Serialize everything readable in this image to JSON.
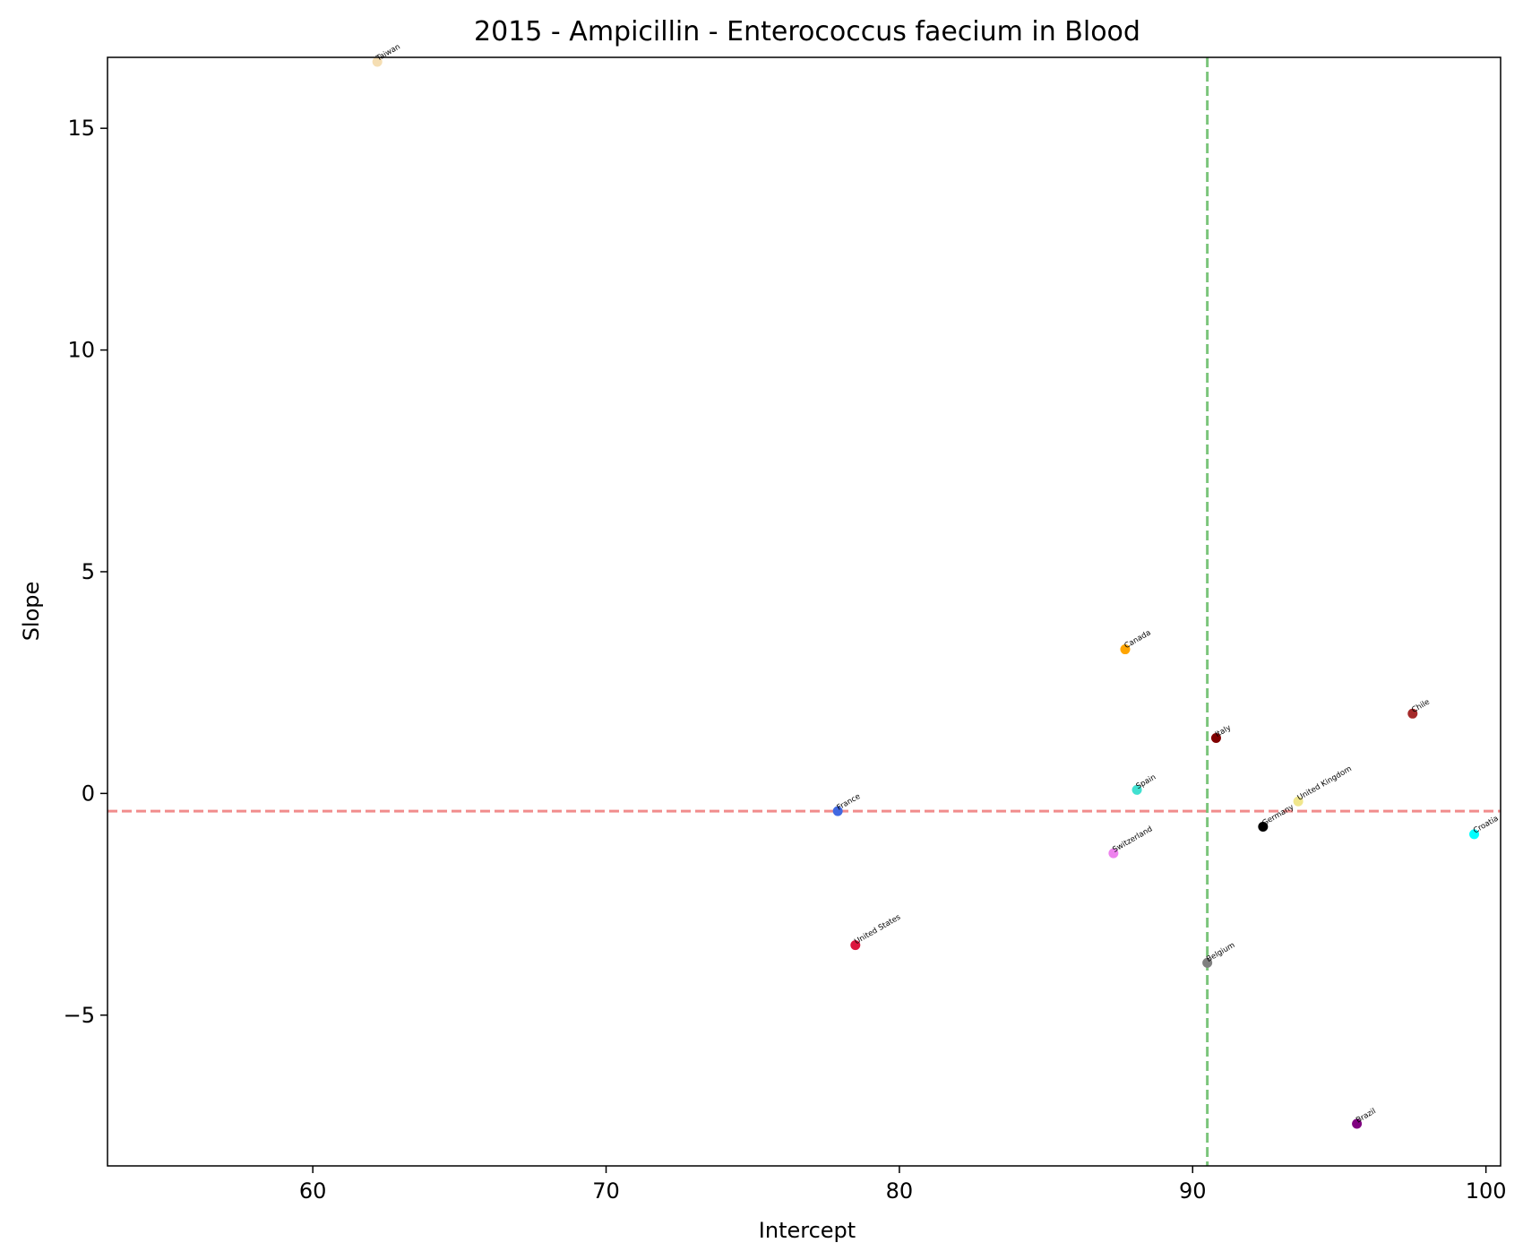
{
  "chart_data": {
    "type": "scatter",
    "title": "2015 - Ampicillin - Enterococcus faecium in Blood",
    "xlabel": "Intercept",
    "ylabel": "Slope",
    "xlim": [
      53.0,
      100.5
    ],
    "ylim": [
      -8.4,
      16.6
    ],
    "xticks": [
      {
        "value": 60,
        "label": "60"
      },
      {
        "value": 70,
        "label": "70"
      },
      {
        "value": 80,
        "label": "80"
      },
      {
        "value": 90,
        "label": "90"
      },
      {
        "value": 100,
        "label": "100"
      }
    ],
    "yticks": [
      {
        "value": -5,
        "label": "−5"
      },
      {
        "value": 0,
        "label": "0"
      },
      {
        "value": 5,
        "label": "5"
      },
      {
        "value": 10,
        "label": "10"
      },
      {
        "value": 15,
        "label": "15"
      }
    ],
    "grid": false,
    "reference_lines": [
      {
        "orientation": "horizontal",
        "value": -0.4,
        "color": "#f08080",
        "style": "dashed"
      },
      {
        "orientation": "vertical",
        "value": 90.5,
        "color": "#6dbf6d",
        "style": "dashed"
      }
    ],
    "points": [
      {
        "label": "Taiwan",
        "x": 62.2,
        "y": 16.5,
        "color": "#f5deb3"
      },
      {
        "label": "Canada",
        "x": 87.7,
        "y": 3.25,
        "color": "#ffa500"
      },
      {
        "label": "Chile",
        "x": 97.5,
        "y": 1.8,
        "color": "#a52a2a"
      },
      {
        "label": "Italy",
        "x": 90.8,
        "y": 1.25,
        "color": "#800000"
      },
      {
        "label": "Spain",
        "x": 88.1,
        "y": 0.08,
        "color": "#40e0d0"
      },
      {
        "label": "France",
        "x": 77.9,
        "y": -0.4,
        "color": "#4169e1"
      },
      {
        "label": "United Kingdom",
        "x": 93.6,
        "y": -0.18,
        "color": "#f0e68c"
      },
      {
        "label": "Germany",
        "x": 92.4,
        "y": -0.75,
        "color": "#000000"
      },
      {
        "label": "Croatia",
        "x": 99.6,
        "y": -0.92,
        "color": "#00ffff"
      },
      {
        "label": "Switzerland",
        "x": 87.3,
        "y": -1.35,
        "color": "#ee82ee"
      },
      {
        "label": "United States",
        "x": 78.5,
        "y": -3.42,
        "color": "#dc143c"
      },
      {
        "label": "Belgium",
        "x": 90.5,
        "y": -3.82,
        "color": "#808080"
      },
      {
        "label": "Brazil",
        "x": 95.6,
        "y": -7.45,
        "color": "#800080"
      }
    ]
  }
}
